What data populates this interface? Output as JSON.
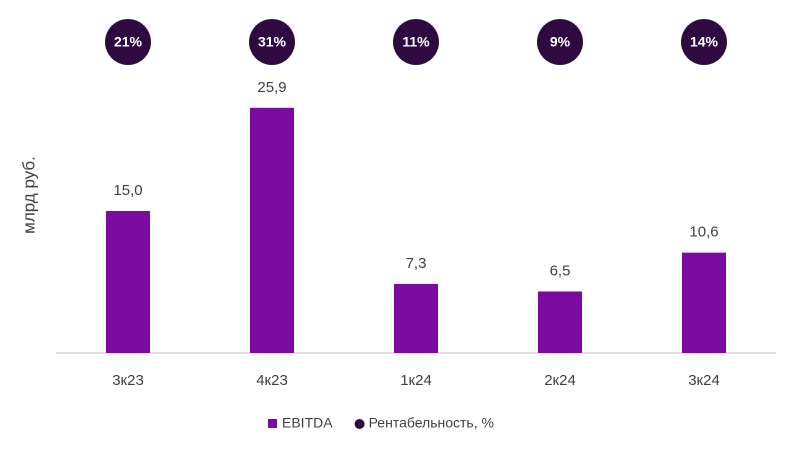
{
  "chart_data": {
    "type": "bar",
    "y_label": "млрд руб.",
    "categories": [
      "3к23",
      "4к23",
      "1к24",
      "2к24",
      "3к24"
    ],
    "series": [
      {
        "name": "EBITDA",
        "color": "#7a0aa0",
        "marker": "bar",
        "values": [
          15.0,
          25.9,
          7.3,
          6.5,
          10.6
        ],
        "value_labels": [
          "15,0",
          "25,9",
          "7,3",
          "6,5",
          "10,6"
        ]
      },
      {
        "name": "Рентабельность, %",
        "color": "#2e0a40",
        "marker": "circle",
        "values": [
          21,
          31,
          11,
          9,
          14
        ],
        "value_labels": [
          "21%",
          "31%",
          "11%",
          "9%",
          "14%"
        ]
      }
    ],
    "ylim": [
      0,
      30
    ],
    "legend": "bottom"
  }
}
